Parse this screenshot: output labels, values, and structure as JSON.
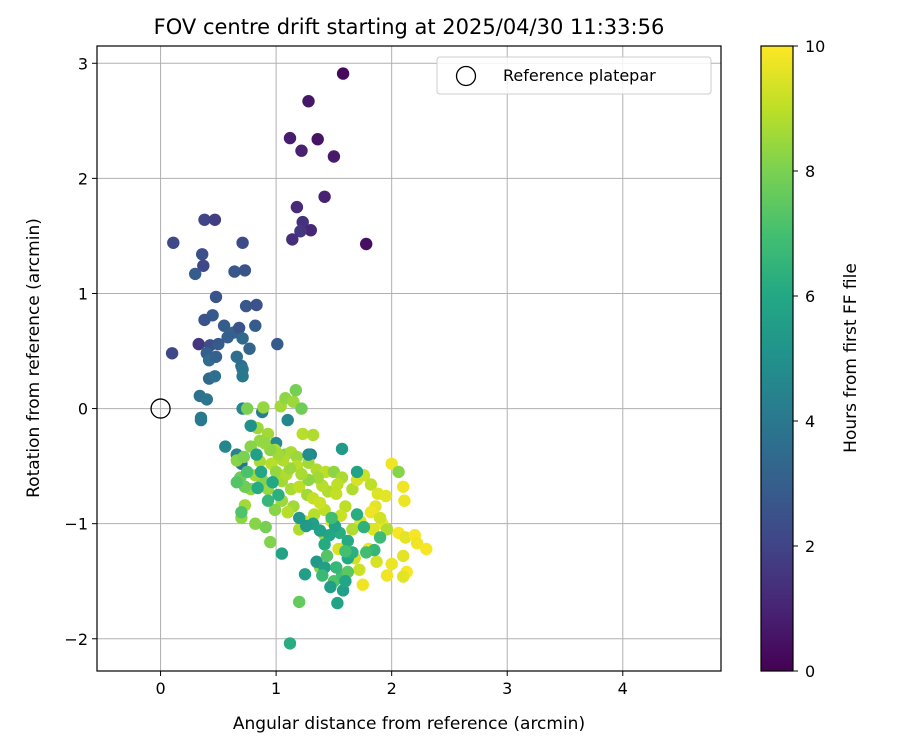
{
  "chart_data": {
    "type": "scatter",
    "title": "FOV centre drift starting at 2025/04/30 11:33:56",
    "xlabel": "Angular distance from reference (arcmin)",
    "ylabel": "Rotation from reference (arcmin)",
    "xlim": [
      -0.55,
      4.85
    ],
    "ylim": [
      -2.28,
      3.15
    ],
    "xticks": [
      0,
      1,
      2,
      3,
      4
    ],
    "yticks": [
      -2,
      -1,
      0,
      1,
      2,
      3
    ],
    "grid": true,
    "legend": {
      "position": "top-right",
      "entries": [
        "Reference platepar"
      ]
    },
    "reference_point": {
      "x": 0,
      "y": 0
    },
    "colorbar": {
      "label": "Hours from first FF file",
      "range": [
        0,
        10
      ],
      "ticks": [
        0,
        2,
        4,
        6,
        8,
        10
      ],
      "colormap": "viridis"
    },
    "points": [
      [
        1.58,
        2.91,
        0.2
      ],
      [
        1.28,
        2.67,
        0.6
      ],
      [
        1.12,
        2.35,
        0.8
      ],
      [
        1.36,
        2.34,
        0.5
      ],
      [
        1.22,
        2.24,
        0.9
      ],
      [
        1.5,
        2.19,
        0.7
      ],
      [
        1.42,
        1.84,
        0.9
      ],
      [
        1.78,
        1.43,
        0.4
      ],
      [
        1.18,
        1.75,
        1.2
      ],
      [
        1.23,
        1.62,
        1.4
      ],
      [
        1.3,
        1.55,
        1.1
      ],
      [
        1.21,
        1.54,
        1.6
      ],
      [
        1.14,
        1.47,
        1.3
      ],
      [
        0.38,
        1.64,
        2.0
      ],
      [
        0.47,
        1.64,
        1.8
      ],
      [
        0.11,
        1.44,
        2.2
      ],
      [
        0.71,
        1.44,
        2.3
      ],
      [
        0.36,
        1.34,
        2.4
      ],
      [
        0.37,
        1.24,
        2.1
      ],
      [
        0.3,
        1.17,
        2.9
      ],
      [
        0.64,
        1.19,
        2.7
      ],
      [
        0.73,
        1.2,
        2.5
      ],
      [
        0.48,
        0.97,
        2.6
      ],
      [
        0.74,
        0.89,
        2.7
      ],
      [
        0.83,
        0.9,
        2.5
      ],
      [
        0.45,
        0.81,
        2.8
      ],
      [
        0.38,
        0.77,
        2.6
      ],
      [
        0.55,
        0.72,
        2.9
      ],
      [
        0.63,
        0.66,
        3.1
      ],
      [
        0.68,
        0.7,
        2.6
      ],
      [
        0.82,
        0.72,
        2.9
      ],
      [
        0.58,
        0.62,
        3.0
      ],
      [
        0.71,
        0.61,
        3.4
      ],
      [
        0.33,
        0.56,
        1.6
      ],
      [
        0.43,
        0.55,
        2.4
      ],
      [
        0.5,
        0.56,
        2.8
      ],
      [
        1.01,
        0.56,
        2.9
      ],
      [
        0.77,
        0.52,
        3.2
      ],
      [
        0.1,
        0.48,
        2.2
      ],
      [
        0.4,
        0.48,
        3.0
      ],
      [
        0.42,
        0.42,
        3.5
      ],
      [
        0.48,
        0.45,
        3.1
      ],
      [
        0.66,
        0.45,
        3.6
      ],
      [
        0.7,
        0.37,
        3.6
      ],
      [
        0.71,
        0.34,
        3.9
      ],
      [
        0.42,
        0.26,
        3.4
      ],
      [
        0.47,
        0.28,
        3.7
      ],
      [
        0.71,
        0.28,
        4.0
      ],
      [
        0.34,
        0.11,
        3.7
      ],
      [
        0.4,
        0.08,
        3.9
      ],
      [
        0.71,
        0.0,
        4.5
      ],
      [
        0.35,
        -0.08,
        3.9
      ],
      [
        0.35,
        -0.1,
        4.1
      ],
      [
        0.88,
        -0.03,
        4.2
      ],
      [
        0.56,
        -0.33,
        4.6
      ],
      [
        0.66,
        -0.4,
        4.4
      ],
      [
        0.7,
        -0.48,
        3.8
      ],
      [
        1.1,
        -0.1,
        4.6
      ],
      [
        1.3,
        -0.4,
        4.4
      ],
      [
        1.0,
        -0.3,
        4.7
      ],
      [
        0.75,
        0.0,
        8.0
      ],
      [
        0.89,
        0.01,
        8.4
      ],
      [
        0.79,
        -0.15,
        8.3
      ],
      [
        0.84,
        -0.17,
        8.5
      ],
      [
        1.04,
        0.02,
        8.6
      ],
      [
        1.08,
        0.09,
        8.3
      ],
      [
        1.15,
        0.06,
        8.5
      ],
      [
        1.17,
        0.16,
        7.9
      ],
      [
        1.22,
        0.0,
        7.8
      ],
      [
        1.23,
        -0.22,
        8.9
      ],
      [
        1.32,
        -0.23,
        8.8
      ],
      [
        0.93,
        -0.22,
        8.6
      ],
      [
        0.86,
        -0.28,
        8.4
      ],
      [
        0.99,
        -0.36,
        8.7
      ],
      [
        1.08,
        -0.4,
        8.2
      ],
      [
        1.13,
        -0.38,
        8.7
      ],
      [
        1.18,
        -0.42,
        8.5
      ],
      [
        1.18,
        -0.5,
        8.9
      ],
      [
        1.28,
        -0.47,
        8.6
      ],
      [
        1.35,
        -0.53,
        8.8
      ],
      [
        1.43,
        -0.55,
        9.0
      ],
      [
        1.5,
        -0.55,
        8.3
      ],
      [
        1.57,
        -0.6,
        8.7
      ],
      [
        1.66,
        -0.7,
        8.8
      ],
      [
        1.7,
        -0.62,
        9.4
      ],
      [
        1.76,
        -0.58,
        9.2
      ],
      [
        1.82,
        -0.66,
        9.0
      ],
      [
        1.88,
        -0.74,
        9.5
      ],
      [
        1.95,
        -0.76,
        9.6
      ],
      [
        2.0,
        -0.48,
        9.8
      ],
      [
        2.06,
        -0.55,
        8.2
      ],
      [
        2.1,
        -0.68,
        9.8
      ],
      [
        2.11,
        -0.8,
        9.7
      ],
      [
        1.86,
        -0.85,
        9.6
      ],
      [
        1.82,
        -0.9,
        9.8
      ],
      [
        1.73,
        -0.98,
        9.4
      ],
      [
        1.66,
        -1.05,
        8.8
      ],
      [
        1.92,
        -1.0,
        9.7
      ],
      [
        1.96,
        -1.05,
        8.8
      ],
      [
        2.06,
        -1.08,
        9.9
      ],
      [
        2.12,
        -1.12,
        9.6
      ],
      [
        2.2,
        -1.1,
        9.9
      ],
      [
        2.22,
        -1.17,
        9.8
      ],
      [
        2.3,
        -1.22,
        9.9
      ],
      [
        2.1,
        -1.28,
        9.6
      ],
      [
        2.0,
        -1.35,
        9.7
      ],
      [
        2.13,
        -1.42,
        9.9
      ],
      [
        2.1,
        -1.46,
        9.6
      ],
      [
        1.96,
        -1.45,
        9.8
      ],
      [
        1.87,
        -1.33,
        9.4
      ],
      [
        1.75,
        -1.53,
        9.8
      ],
      [
        1.72,
        -1.4,
        9.2
      ],
      [
        1.68,
        -1.3,
        9.3
      ],
      [
        1.6,
        -1.2,
        9.5
      ],
      [
        1.54,
        -1.22,
        9.4
      ],
      [
        1.8,
        -1.22,
        9.7
      ],
      [
        1.84,
        -1.05,
        9.5
      ],
      [
        1.9,
        -0.95,
        9.3
      ],
      [
        1.6,
        -0.85,
        9.0
      ],
      [
        1.56,
        -0.93,
        9.2
      ],
      [
        1.48,
        -0.98,
        9.3
      ],
      [
        1.42,
        -0.88,
        9.0
      ],
      [
        1.33,
        -0.92,
        8.9
      ],
      [
        1.25,
        -0.98,
        9.1
      ],
      [
        1.2,
        -1.05,
        8.8
      ],
      [
        1.15,
        -0.85,
        8.6
      ],
      [
        1.1,
        -0.9,
        8.9
      ],
      [
        1.05,
        -0.8,
        8.5
      ],
      [
        0.99,
        -0.88,
        8.2
      ],
      [
        0.93,
        -0.7,
        8.4
      ],
      [
        0.88,
        -0.62,
        8.1
      ],
      [
        0.82,
        -0.58,
        8.5
      ],
      [
        0.78,
        -0.7,
        8.3
      ],
      [
        0.73,
        -0.68,
        7.8
      ],
      [
        0.69,
        -0.6,
        7.7
      ],
      [
        0.66,
        -0.45,
        8.2
      ],
      [
        0.73,
        -0.84,
        8.6
      ],
      [
        0.7,
        -0.95,
        8.3
      ],
      [
        0.82,
        -1.0,
        8.2
      ],
      [
        0.91,
        -1.03,
        7.9
      ],
      [
        0.95,
        -1.16,
        8.1
      ],
      [
        0.72,
        -0.42,
        8.0
      ],
      [
        0.78,
        -0.33,
        8.2
      ],
      [
        0.86,
        -0.46,
        8.7
      ],
      [
        0.96,
        -0.48,
        8.9
      ],
      [
        1.0,
        -0.55,
        8.4
      ],
      [
        1.05,
        -0.63,
        8.6
      ],
      [
        1.09,
        -0.57,
        8.8
      ],
      [
        1.13,
        -0.7,
        8.7
      ],
      [
        1.2,
        -0.68,
        9.0
      ],
      [
        1.27,
        -0.75,
        8.6
      ],
      [
        1.32,
        -0.78,
        9.1
      ],
      [
        1.38,
        -0.82,
        9.2
      ],
      [
        1.45,
        -0.72,
        8.8
      ],
      [
        1.52,
        -0.74,
        9.1
      ],
      [
        1.53,
        -0.66,
        9.0
      ],
      [
        1.4,
        -0.67,
        8.9
      ],
      [
        1.36,
        -0.6,
        8.6
      ],
      [
        1.28,
        -0.62,
        8.3
      ],
      [
        1.22,
        -0.57,
        8.7
      ],
      [
        1.12,
        -0.52,
        8.5
      ],
      [
        1.06,
        -0.45,
        8.8
      ],
      [
        1.02,
        -0.4,
        8.6
      ],
      [
        0.95,
        -0.36,
        8.3
      ],
      [
        0.9,
        -0.3,
        8.4
      ],
      [
        1.42,
        -1.1,
        8.6
      ],
      [
        1.38,
        -1.38,
        8.1
      ],
      [
        1.2,
        -1.68,
        7.6
      ],
      [
        1.5,
        -1.5,
        7.2
      ],
      [
        1.57,
        -1.45,
        7.0
      ],
      [
        1.62,
        -1.42,
        7.4
      ],
      [
        1.05,
        -1.26,
        5.8
      ],
      [
        1.12,
        -2.04,
        6.2
      ],
      [
        1.25,
        -1.44,
        5.6
      ],
      [
        1.35,
        -1.33,
        5.3
      ],
      [
        1.42,
        -1.38,
        5.6
      ],
      [
        1.47,
        -1.55,
        5.5
      ],
      [
        1.53,
        -1.69,
        5.8
      ],
      [
        1.58,
        -1.58,
        5.6
      ],
      [
        1.6,
        -1.5,
        5.9
      ],
      [
        1.62,
        -1.3,
        6.0
      ],
      [
        1.66,
        -1.25,
        6.3
      ],
      [
        1.62,
        -1.15,
        6.1
      ],
      [
        1.55,
        -1.08,
        6.2
      ],
      [
        1.51,
        -1.02,
        5.8
      ],
      [
        1.46,
        -1.1,
        5.9
      ],
      [
        1.42,
        -1.18,
        6.1
      ],
      [
        1.38,
        -1.06,
        5.7
      ],
      [
        1.32,
        -1.0,
        5.6
      ],
      [
        1.26,
        -1.02,
        5.4
      ],
      [
        1.2,
        -0.95,
        5.3
      ],
      [
        1.7,
        -0.92,
        6.2
      ],
      [
        1.76,
        -1.03,
        6.4
      ],
      [
        1.85,
        -1.23,
        6.6
      ],
      [
        1.9,
        -1.12,
        6.8
      ],
      [
        1.7,
        -0.55,
        5.8
      ],
      [
        1.57,
        -0.35,
        5.4
      ],
      [
        1.28,
        -0.4,
        4.8
      ],
      [
        0.78,
        -0.15,
        5.0
      ],
      [
        0.83,
        -0.4,
        5.6
      ],
      [
        0.87,
        -0.55,
        5.9
      ],
      [
        0.84,
        -0.69,
        6.1
      ],
      [
        0.97,
        -0.64,
        6.0
      ],
      [
        1.02,
        -0.75,
        6.3
      ],
      [
        0.93,
        -0.8,
        6.6
      ],
      [
        0.7,
        -0.9,
        7.2
      ],
      [
        0.66,
        -0.64,
        7.3
      ],
      [
        0.75,
        -0.55,
        7.1
      ],
      [
        1.48,
        -0.95,
        6.9
      ],
      [
        1.52,
        -1.38,
        6.6
      ],
      [
        1.44,
        -1.28,
        7.3
      ],
      [
        1.6,
        -1.24,
        7.0
      ],
      [
        1.78,
        -1.25,
        6.9
      ],
      [
        1.4,
        -1.45,
        6.7
      ]
    ]
  }
}
